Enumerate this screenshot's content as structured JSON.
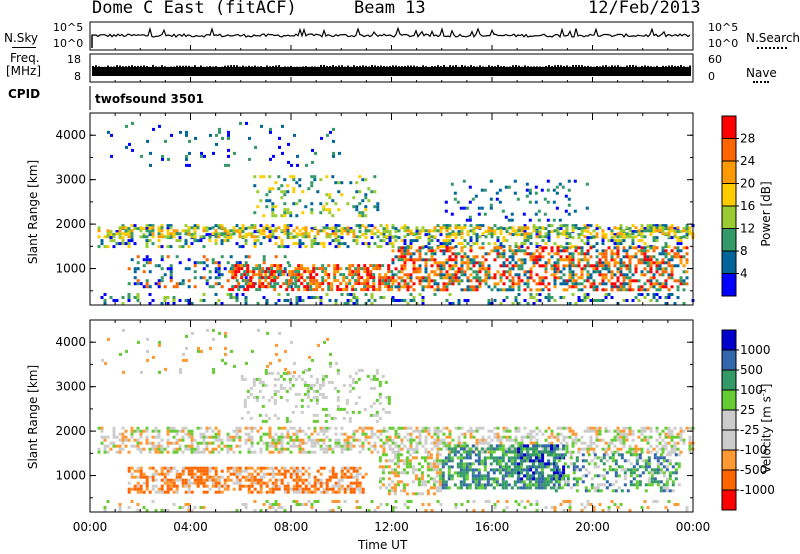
{
  "header": {
    "title": "Dome C East (fitACF)",
    "beam": "Beam 13",
    "date": "12/Feb/2013"
  },
  "left_labels": {
    "nsky": "N.Sky",
    "freq": "Freq.",
    "freq_unit": "[MHz]",
    "cpid": "CPID"
  },
  "right_labels": {
    "nsearch": "N.Search",
    "nave": "Nave"
  },
  "strip_ticks": {
    "noise_left_top": "10^5",
    "noise_left_bottom": "10^0",
    "noise_right_top": "10^5",
    "noise_right_bottom": "10^0",
    "freq_left_top": "18",
    "freq_left_bottom": "8",
    "nave_right_top": "60",
    "nave_right_bottom": "0"
  },
  "cpid_text": "twofsound 3501",
  "chart_data": [
    {
      "type": "heatmap",
      "name": "power",
      "ylabel": "Slant Range [km]",
      "ylim": [
        180,
        4500
      ],
      "yticks": [
        "1000",
        "2000",
        "3000",
        "4000"
      ],
      "xlim": [
        0,
        24
      ],
      "colorbar_label": "Power [dB]",
      "colorbar_ticks": [
        "28",
        "24",
        "20",
        "16",
        "12",
        "8",
        "4"
      ],
      "colorbar_colors": [
        "#ff0000",
        "#ff6600",
        "#ff9900",
        "#ffcc00",
        "#99cc33",
        "#339966",
        "#006699",
        "#0000ff"
      ]
    },
    {
      "type": "heatmap",
      "name": "velocity",
      "ylabel": "Slant Range [km]",
      "ylim": [
        180,
        4500
      ],
      "yticks": [
        "1000",
        "2000",
        "3000",
        "4000"
      ],
      "xlim": [
        0,
        24
      ],
      "xlabel": "Time UT",
      "xticks": [
        "00:00",
        "04:00",
        "08:00",
        "12:00",
        "16:00",
        "20:00",
        "00:00"
      ],
      "colorbar_label": "Velocity [m s",
      "colorbar_label_sup": "-1",
      "colorbar_label_end": "]",
      "colorbar_ticks": [
        "1000",
        "500",
        "100",
        "25",
        "-25",
        "-100",
        "-500",
        "-1000"
      ],
      "colorbar_colors": [
        "#0000cc",
        "#3366aa",
        "#339966",
        "#66cc33",
        "#cccccc",
        "#cccccc",
        "#ff9933",
        "#ff6600",
        "#ff0000"
      ]
    }
  ]
}
